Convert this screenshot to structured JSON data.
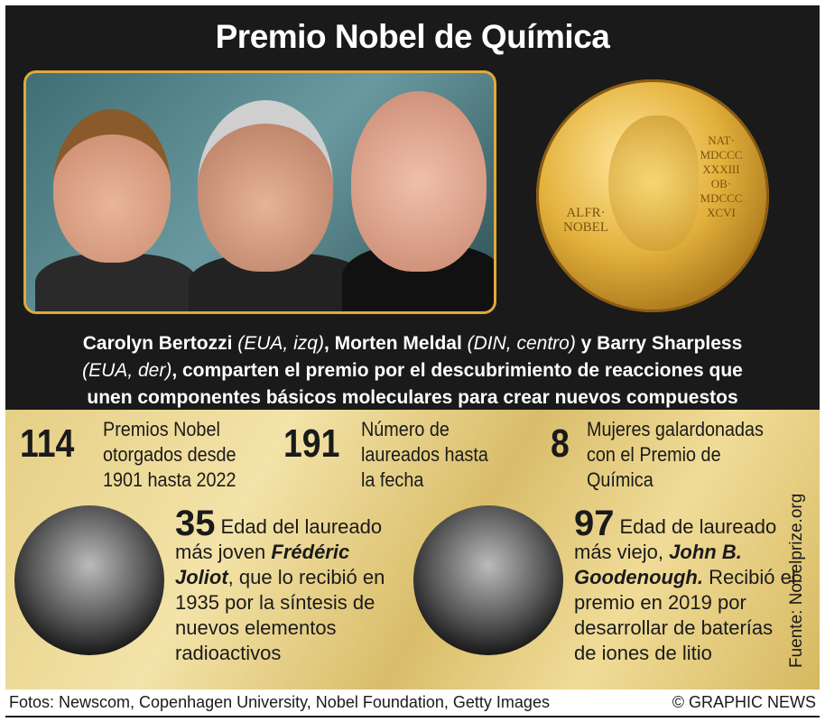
{
  "title": "Premio Nobel de Química",
  "medal": {
    "left": "ALFR· NOBEL",
    "right": "NAT· MDCCC XXXIII OB· MDCCC XCVI"
  },
  "caption": {
    "l1a": "Carolyn Bertozzi",
    "l1b": " (EUA, izq)",
    "l1c": ", Morten Meldal",
    "l1d": " (DIN, centro)",
    "l1e": " y Barry Sharpless",
    "l2a": "(EUA, der)",
    "l2b": ", comparten el premio por el descubrimiento de reacciones que",
    "l3": "unen componentes básicos moleculares para crear nuevos compuestos"
  },
  "stats": [
    {
      "value": "114",
      "lines": [
        "Premios Nobel",
        "otorgados desde",
        "1901 hasta 2022"
      ]
    },
    {
      "value": "191",
      "lines": [
        "Número de",
        "laureados hasta",
        "la fecha"
      ]
    },
    {
      "value": "8",
      "lines": [
        "Mujeres galardonadas",
        "con el Premio de",
        "Química"
      ]
    }
  ],
  "youngest": {
    "age": "35",
    "t1": "Edad del laureado más joven ",
    "name": "Frédéric Joliot",
    "t2": ", que lo recibió en 1935 por la síntesis de nuevos elementos radioactivos"
  },
  "oldest": {
    "age": "97",
    "t1": "Edad de laureado más viejo, ",
    "name": "John B. Goodenough.",
    "t2": " Recibió el premio en 2019 por desarrollar de baterías de iones de litio"
  },
  "source": "Fuente: Nobelprize.org",
  "credits": "Fotos: Newscom, Copenhagen University, Nobel Foundation, Getty Images",
  "copyright": "© GRAPHIC NEWS"
}
